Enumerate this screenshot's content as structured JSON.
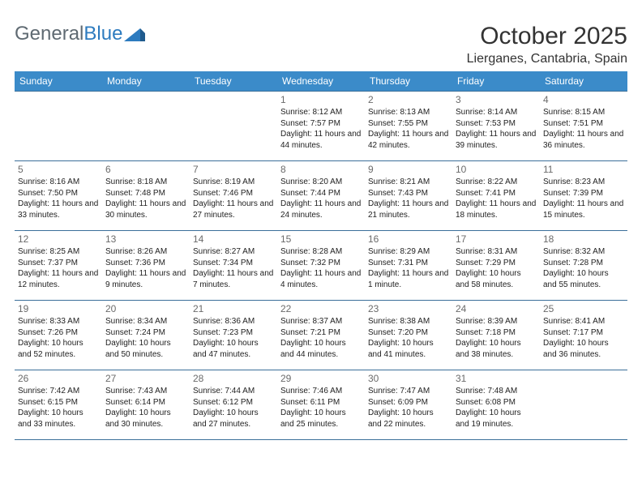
{
  "logo": {
    "text1": "General",
    "text2": "Blue"
  },
  "header": {
    "title": "October 2025",
    "location": "Lierganes, Cantabria, Spain"
  },
  "colors": {
    "headerRow": "#3b8bc9",
    "headerText": "#ffffff",
    "cellBorder": "#3b6f9a",
    "dayNum": "#6b6b6b",
    "bodyText": "#222222",
    "logoGray": "#5f6a72",
    "logoBlue": "#2d7bbf"
  },
  "weekdays": [
    "Sunday",
    "Monday",
    "Tuesday",
    "Wednesday",
    "Thursday",
    "Friday",
    "Saturday"
  ],
  "weeks": [
    [
      null,
      null,
      null,
      {
        "d": "1",
        "sr": "8:12 AM",
        "ss": "7:57 PM",
        "dl": "11 hours and 44 minutes."
      },
      {
        "d": "2",
        "sr": "8:13 AM",
        "ss": "7:55 PM",
        "dl": "11 hours and 42 minutes."
      },
      {
        "d": "3",
        "sr": "8:14 AM",
        "ss": "7:53 PM",
        "dl": "11 hours and 39 minutes."
      },
      {
        "d": "4",
        "sr": "8:15 AM",
        "ss": "7:51 PM",
        "dl": "11 hours and 36 minutes."
      }
    ],
    [
      {
        "d": "5",
        "sr": "8:16 AM",
        "ss": "7:50 PM",
        "dl": "11 hours and 33 minutes."
      },
      {
        "d": "6",
        "sr": "8:18 AM",
        "ss": "7:48 PM",
        "dl": "11 hours and 30 minutes."
      },
      {
        "d": "7",
        "sr": "8:19 AM",
        "ss": "7:46 PM",
        "dl": "11 hours and 27 minutes."
      },
      {
        "d": "8",
        "sr": "8:20 AM",
        "ss": "7:44 PM",
        "dl": "11 hours and 24 minutes."
      },
      {
        "d": "9",
        "sr": "8:21 AM",
        "ss": "7:43 PM",
        "dl": "11 hours and 21 minutes."
      },
      {
        "d": "10",
        "sr": "8:22 AM",
        "ss": "7:41 PM",
        "dl": "11 hours and 18 minutes."
      },
      {
        "d": "11",
        "sr": "8:23 AM",
        "ss": "7:39 PM",
        "dl": "11 hours and 15 minutes."
      }
    ],
    [
      {
        "d": "12",
        "sr": "8:25 AM",
        "ss": "7:37 PM",
        "dl": "11 hours and 12 minutes."
      },
      {
        "d": "13",
        "sr": "8:26 AM",
        "ss": "7:36 PM",
        "dl": "11 hours and 9 minutes."
      },
      {
        "d": "14",
        "sr": "8:27 AM",
        "ss": "7:34 PM",
        "dl": "11 hours and 7 minutes."
      },
      {
        "d": "15",
        "sr": "8:28 AM",
        "ss": "7:32 PM",
        "dl": "11 hours and 4 minutes."
      },
      {
        "d": "16",
        "sr": "8:29 AM",
        "ss": "7:31 PM",
        "dl": "11 hours and 1 minute."
      },
      {
        "d": "17",
        "sr": "8:31 AM",
        "ss": "7:29 PM",
        "dl": "10 hours and 58 minutes."
      },
      {
        "d": "18",
        "sr": "8:32 AM",
        "ss": "7:28 PM",
        "dl": "10 hours and 55 minutes."
      }
    ],
    [
      {
        "d": "19",
        "sr": "8:33 AM",
        "ss": "7:26 PM",
        "dl": "10 hours and 52 minutes."
      },
      {
        "d": "20",
        "sr": "8:34 AM",
        "ss": "7:24 PM",
        "dl": "10 hours and 50 minutes."
      },
      {
        "d": "21",
        "sr": "8:36 AM",
        "ss": "7:23 PM",
        "dl": "10 hours and 47 minutes."
      },
      {
        "d": "22",
        "sr": "8:37 AM",
        "ss": "7:21 PM",
        "dl": "10 hours and 44 minutes."
      },
      {
        "d": "23",
        "sr": "8:38 AM",
        "ss": "7:20 PM",
        "dl": "10 hours and 41 minutes."
      },
      {
        "d": "24",
        "sr": "8:39 AM",
        "ss": "7:18 PM",
        "dl": "10 hours and 38 minutes."
      },
      {
        "d": "25",
        "sr": "8:41 AM",
        "ss": "7:17 PM",
        "dl": "10 hours and 36 minutes."
      }
    ],
    [
      {
        "d": "26",
        "sr": "7:42 AM",
        "ss": "6:15 PM",
        "dl": "10 hours and 33 minutes."
      },
      {
        "d": "27",
        "sr": "7:43 AM",
        "ss": "6:14 PM",
        "dl": "10 hours and 30 minutes."
      },
      {
        "d": "28",
        "sr": "7:44 AM",
        "ss": "6:12 PM",
        "dl": "10 hours and 27 minutes."
      },
      {
        "d": "29",
        "sr": "7:46 AM",
        "ss": "6:11 PM",
        "dl": "10 hours and 25 minutes."
      },
      {
        "d": "30",
        "sr": "7:47 AM",
        "ss": "6:09 PM",
        "dl": "10 hours and 22 minutes."
      },
      {
        "d": "31",
        "sr": "7:48 AM",
        "ss": "6:08 PM",
        "dl": "10 hours and 19 minutes."
      },
      null
    ]
  ],
  "labels": {
    "sunrise": "Sunrise: ",
    "sunset": "Sunset: ",
    "daylight": "Daylight: "
  }
}
